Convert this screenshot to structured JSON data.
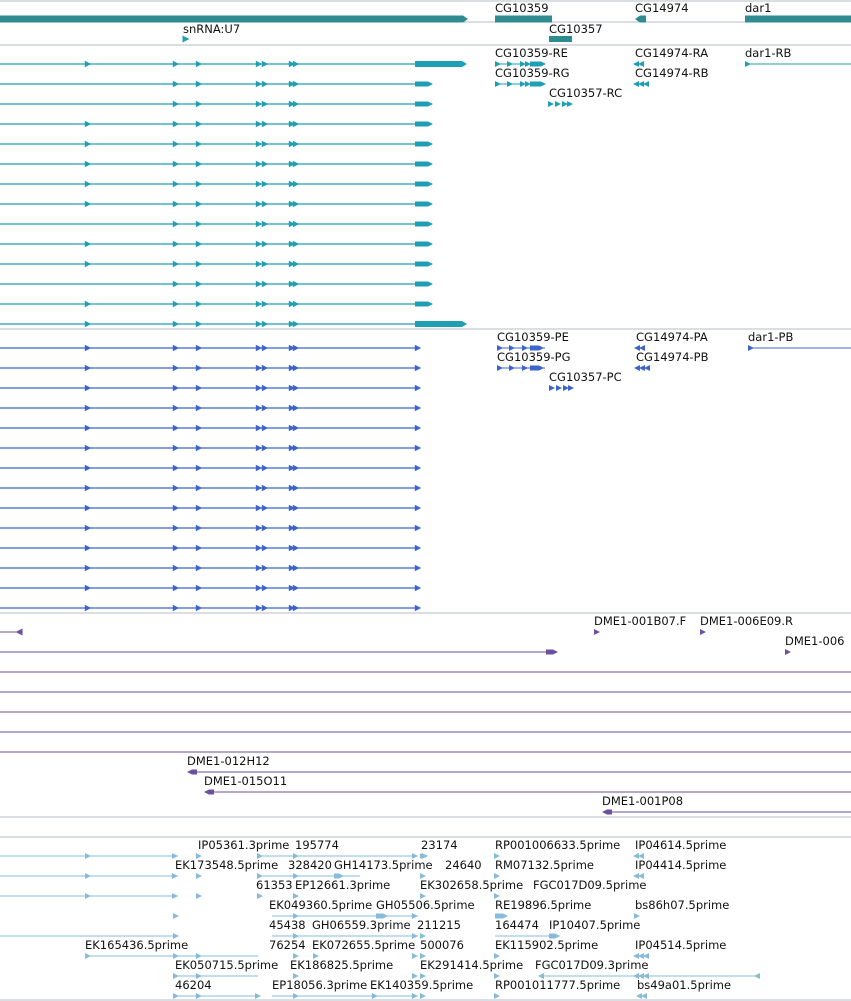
{
  "view": {
    "name": "genome-browser-track-view"
  },
  "colors": {
    "gene": "#2e8b8f",
    "transcript": "#1e9fb3",
    "protein": "#3c64cc",
    "clone": "#6c4f9e",
    "est": "#86bcd8",
    "divider": "#b6bec6",
    "label": "#111111"
  },
  "tracks": {
    "genes": {
      "labels": [
        {
          "id": "CG10359",
          "text": "CG10359"
        },
        {
          "id": "CG14974",
          "text": "CG14974"
        },
        {
          "id": "dar1",
          "text": "dar1"
        },
        {
          "id": "snRNA_U7",
          "text": "snRNA:U7"
        },
        {
          "id": "CG10357",
          "text": "CG10357"
        }
      ]
    },
    "transcripts": {
      "labels": [
        {
          "id": "CG10359-RE",
          "text": "CG10359-RE"
        },
        {
          "id": "CG14974-RA",
          "text": "CG14974-RA"
        },
        {
          "id": "dar1-RB",
          "text": "dar1-RB"
        },
        {
          "id": "CG10359-RG",
          "text": "CG10359-RG"
        },
        {
          "id": "CG14974-RB",
          "text": "CG14974-RB"
        },
        {
          "id": "CG10357-RC",
          "text": "CG10357-RC"
        }
      ]
    },
    "proteins": {
      "labels": [
        {
          "id": "CG10359-PE",
          "text": "CG10359-PE"
        },
        {
          "id": "CG14974-PA",
          "text": "CG14974-PA"
        },
        {
          "id": "dar1-PB",
          "text": "dar1-PB"
        },
        {
          "id": "CG10359-PG",
          "text": "CG10359-PG"
        },
        {
          "id": "CG14974-PB",
          "text": "CG14974-PB"
        },
        {
          "id": "CG10357-PC",
          "text": "CG10357-PC"
        }
      ]
    },
    "clones": {
      "labels": [
        {
          "id": "DME1-001B07.F",
          "text": "DME1-001B07.F"
        },
        {
          "id": "DME1-006E09.R",
          "text": "DME1-006E09.R"
        },
        {
          "id": "DME1-006",
          "text": "DME1-006"
        },
        {
          "id": "DME1-012H12",
          "text": "DME1-012H12"
        },
        {
          "id": "DME1-015O11",
          "text": "DME1-015O11"
        },
        {
          "id": "DME1-001P08",
          "text": "DME1-001P08"
        }
      ]
    },
    "ests": {
      "labels": [
        {
          "id": "IP05361.3prime",
          "text": "IP05361.3prime"
        },
        {
          "id": "195774",
          "text": "195774"
        },
        {
          "id": "23174",
          "text": "23174"
        },
        {
          "id": "RP001006633.5prime",
          "text": "RP001006633.5prime"
        },
        {
          "id": "IP04614.5prime",
          "text": "IP04614.5prime"
        },
        {
          "id": "EK173548.5prime",
          "text": "EK173548.5prime"
        },
        {
          "id": "328420",
          "text": "328420"
        },
        {
          "id": "GH14173.5prime",
          "text": "GH14173.5prime"
        },
        {
          "id": "24640",
          "text": "24640"
        },
        {
          "id": "RM07132.5prime",
          "text": "RM07132.5prime"
        },
        {
          "id": "IP04414.5prime",
          "text": "IP04414.5prime"
        },
        {
          "id": "61353",
          "text": "61353"
        },
        {
          "id": "EP12661.3prime",
          "text": "EP12661.3prime"
        },
        {
          "id": "EK302658.5prime",
          "text": "EK302658.5prime"
        },
        {
          "id": "FGC017D09.5prime",
          "text": "FGC017D09.5prime"
        },
        {
          "id": "EK049360.5prime",
          "text": "EK049360.5prime"
        },
        {
          "id": "GH05506.5prime",
          "text": "GH05506.5prime"
        },
        {
          "id": "RE19896.5prime",
          "text": "RE19896.5prime"
        },
        {
          "id": "bs86h07.5prime",
          "text": "bs86h07.5prime"
        },
        {
          "id": "45438",
          "text": "45438"
        },
        {
          "id": "GH06559.3prime",
          "text": "GH06559.3prime"
        },
        {
          "id": "211215",
          "text": "211215"
        },
        {
          "id": "164474",
          "text": "164474"
        },
        {
          "id": "IP10407.5prime",
          "text": "IP10407.5prime"
        },
        {
          "id": "EK165436.5prime",
          "text": "EK165436.5prime"
        },
        {
          "id": "76254",
          "text": "76254"
        },
        {
          "id": "EK072655.5prime",
          "text": "EK072655.5prime"
        },
        {
          "id": "500076",
          "text": "500076"
        },
        {
          "id": "EK115902.5prime",
          "text": "EK115902.5prime"
        },
        {
          "id": "IP04514.5prime",
          "text": "IP04514.5prime"
        },
        {
          "id": "EK050715.5prime",
          "text": "EK050715.5prime"
        },
        {
          "id": "EK186825.5prime",
          "text": "EK186825.5prime"
        },
        {
          "id": "EK291414.5prime",
          "text": "EK291414.5prime"
        },
        {
          "id": "FGC017D09.3prime",
          "text": "FGC017D09.3prime"
        },
        {
          "id": "46204",
          "text": "46204"
        },
        {
          "id": "EP18056.3prime",
          "text": "EP18056.3prime"
        },
        {
          "id": "EK140359.5prime",
          "text": "EK140359.5prime"
        },
        {
          "id": "RP001011777.5prime",
          "text": "RP001011777.5prime"
        },
        {
          "id": "bs49a01.5prime",
          "text": "bs49a01.5prime"
        }
      ]
    }
  }
}
